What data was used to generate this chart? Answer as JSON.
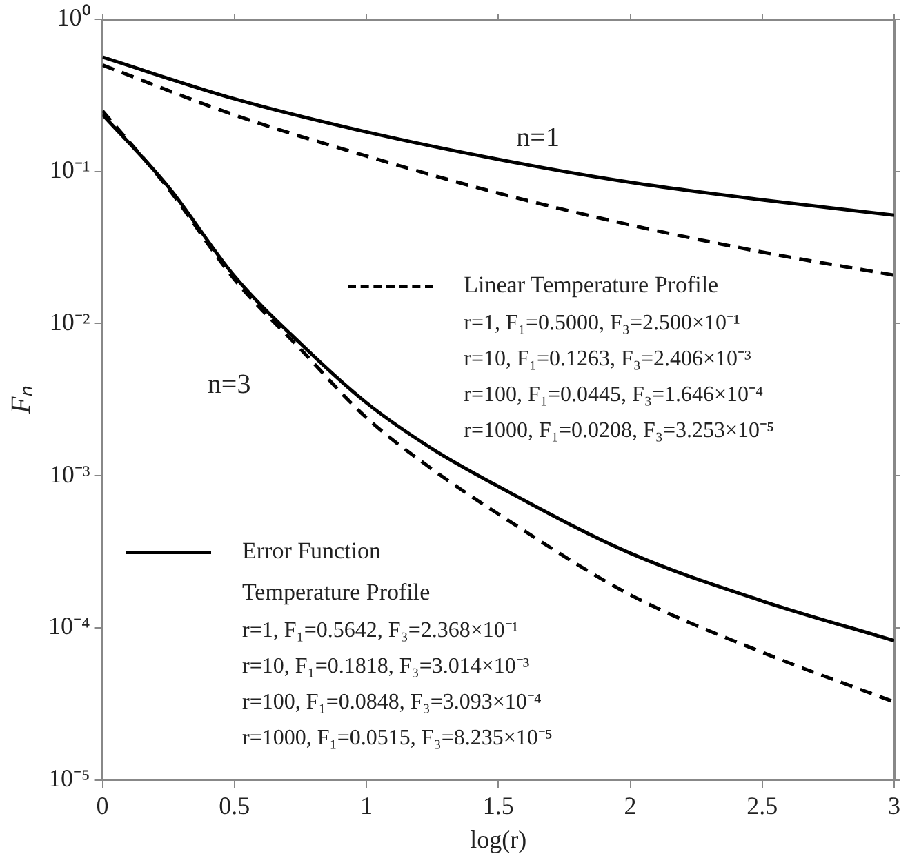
{
  "chart_data": {
    "type": "line",
    "xlabel": "log(r)",
    "ylabel": "Fₙ",
    "log": "y",
    "grid": false,
    "legend": "bottom left",
    "marker": "none",
    "xlim": [
      0,
      3
    ],
    "xticks": [
      0,
      0.5,
      1,
      1.5,
      2,
      2.5,
      3
    ],
    "ylim": [
      1e-05,
      1
    ],
    "yticks": [
      {
        "value": 1,
        "label": "10⁰"
      },
      {
        "value": 0.1,
        "label": "10⁻¹"
      },
      {
        "value": 0.01,
        "label": "10⁻²"
      },
      {
        "value": 0.001,
        "label": "10⁻³"
      },
      {
        "value": 0.0001,
        "label": "10⁻⁴"
      },
      {
        "value": 1e-05,
        "label": "10⁻⁵"
      }
    ],
    "series": [
      {
        "name": "Linear Temperature Profile",
        "color": "#000000",
        "line_style": "dashed",
        "x": [
          0,
          0.5,
          1,
          1.5,
          2,
          2.5,
          3
        ],
        "values": [
          0.5,
          0.235,
          0.1263,
          0.072,
          0.0445,
          0.0295,
          0.0208
        ]
      },
      {
        "name": "Error Function Temperature Profile",
        "color": "#000000",
        "line_style": "solid",
        "x": [
          0,
          0.5,
          1,
          1.5,
          2,
          2.5,
          3
        ],
        "values": [
          0.5642,
          0.3,
          0.1818,
          0.12,
          0.0848,
          0.065,
          0.0515
        ]
      },
      {
        "color": "#000000",
        "line_style": "dashed",
        "x": [
          0,
          0.25,
          0.5,
          0.75,
          1,
          1.25,
          1.5,
          2,
          2.5,
          3
        ],
        "values": [
          0.25,
          0.077,
          0.0195,
          0.0068,
          0.002406,
          0.0011,
          0.00056,
          0.0001646,
          6.9e-05,
          3.253e-05
        ]
      },
      {
        "color": "#000000",
        "line_style": "solid",
        "x": [
          0,
          0.25,
          0.5,
          0.75,
          1,
          1.25,
          1.5,
          2,
          2.5,
          3
        ],
        "values": [
          0.2368,
          0.079,
          0.0205,
          0.0074,
          0.003014,
          0.0015,
          0.00085,
          0.0003093,
          0.00015,
          8.235e-05
        ]
      }
    ],
    "annotations": [
      "n=1",
      "n=3",
      "r=1, F₁=0.5000, F₃=2.500×10⁻¹",
      "r=10, F₁=0.1263, F₃=2.406×10⁻³",
      "r=100, F₁=0.0445, F₃=1.646×10⁻⁴",
      "r=1000, F₁=0.0208, F₃=3.253×10⁻⁵",
      "r=1, F₁=0.5642, F₃=2.368×10⁻¹",
      "r=10, F₁=0.1818, F₃=3.014×10⁻³",
      "r=100, F₁=0.0848, F₃=3.093×10⁻⁴",
      "r=1000, F₁=0.0515, F₃=8.235×10⁻⁵"
    ]
  }
}
